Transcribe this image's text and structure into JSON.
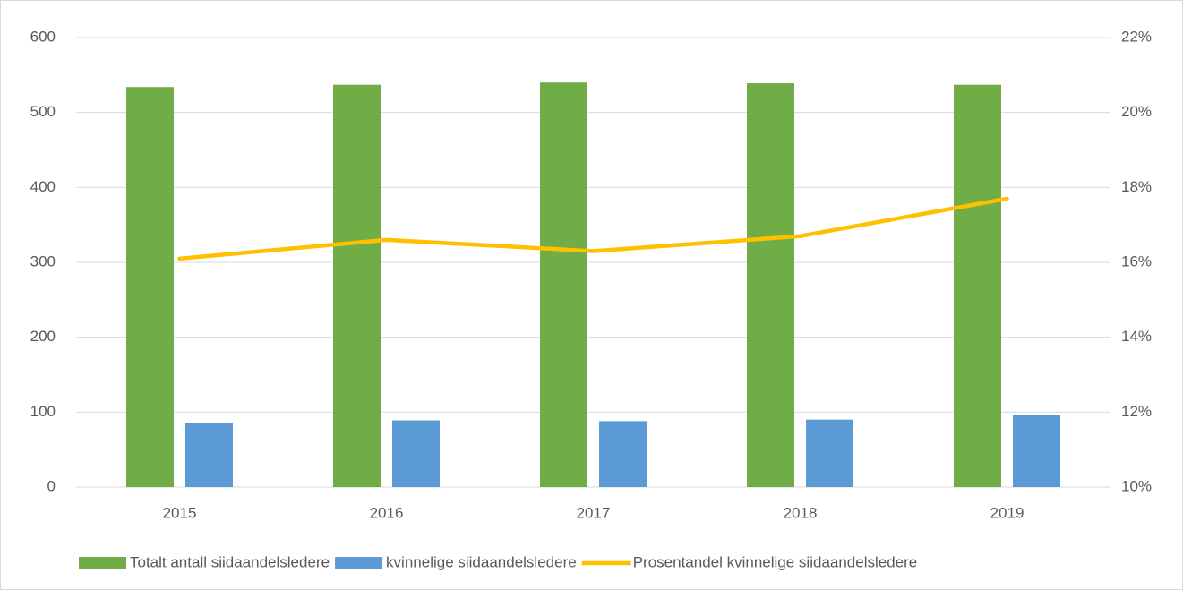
{
  "chart_data": {
    "type": "bar",
    "categories": [
      "2015",
      "2016",
      "2017",
      "2018",
      "2019"
    ],
    "series": [
      {
        "name": "Totalt antall siidaandelsledere",
        "type": "bar",
        "color": "#70ad47",
        "values": [
          534,
          537,
          540,
          539,
          537
        ]
      },
      {
        "name": "kvinnelige siidaandelsledere",
        "type": "bar",
        "color": "#5b9bd5",
        "values": [
          86,
          89,
          88,
          90,
          96
        ]
      },
      {
        "name": "Prosentandel kvinnelige siidaandelsledere",
        "type": "line",
        "axis": "y2",
        "color": "#ffc000",
        "values": [
          16.1,
          16.6,
          16.3,
          16.7,
          17.7
        ]
      }
    ],
    "ylim": [
      0,
      600
    ],
    "yticks": [
      0,
      100,
      200,
      300,
      400,
      500,
      600
    ],
    "y2lim": [
      10,
      22
    ],
    "y2ticks": [
      {
        "value": 10,
        "label": "10%"
      },
      {
        "value": 12,
        "label": "12%"
      },
      {
        "value": 14,
        "label": "14%"
      },
      {
        "value": 16,
        "label": "16%"
      },
      {
        "value": 18,
        "label": "18%"
      },
      {
        "value": 20,
        "label": "20%"
      },
      {
        "value": 22,
        "label": "22%"
      }
    ],
    "grid": true,
    "legend": "bottom"
  }
}
